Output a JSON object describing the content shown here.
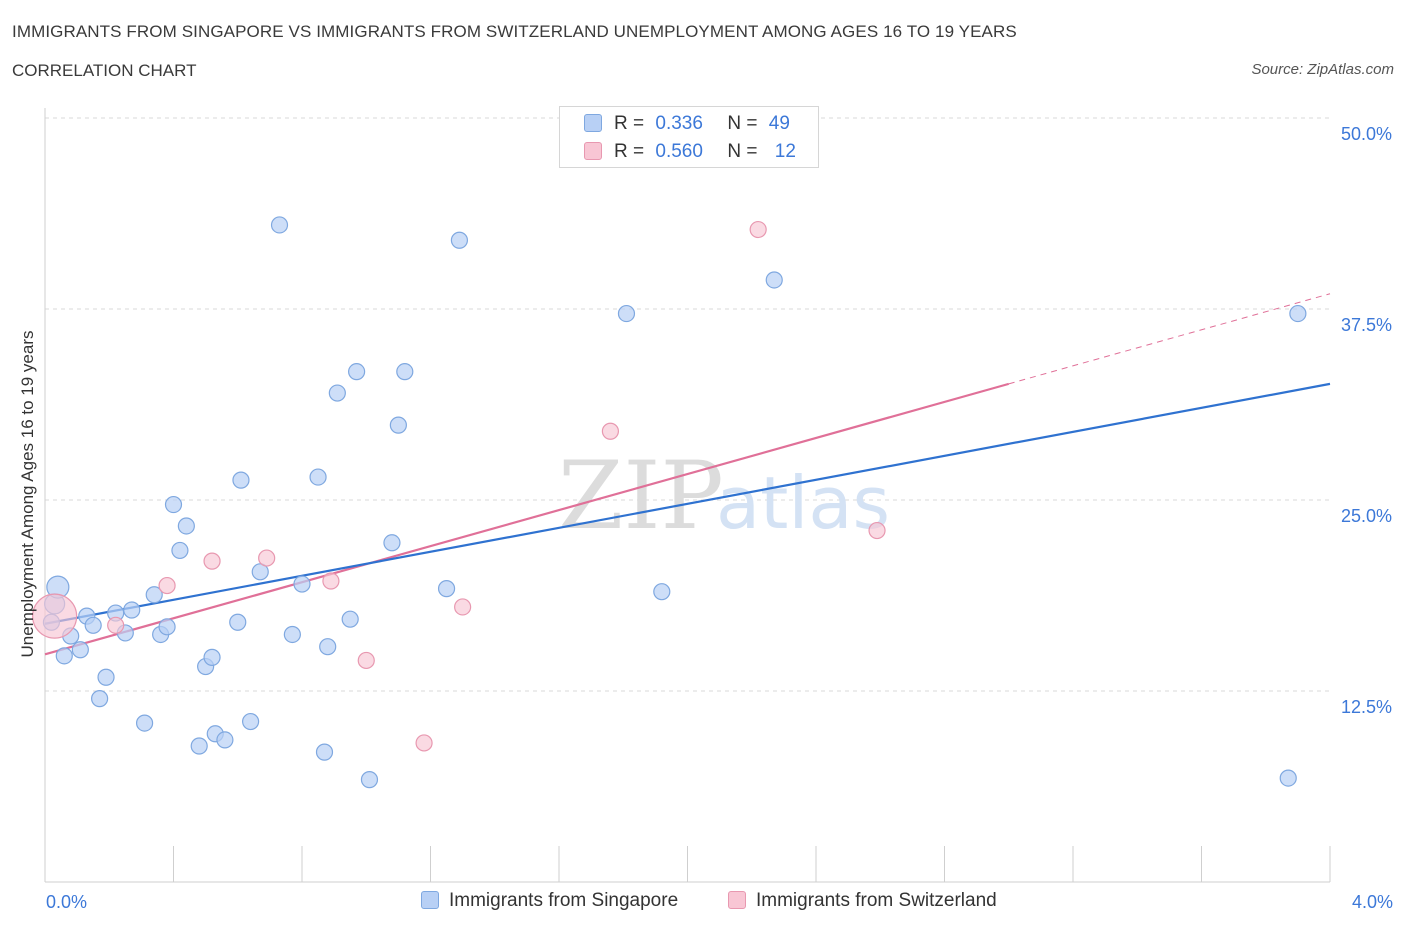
{
  "title": "IMMIGRANTS FROM SINGAPORE VS IMMIGRANTS FROM SWITZERLAND UNEMPLOYMENT AMONG AGES 16 TO 19 YEARS",
  "subtitle": "CORRELATION CHART",
  "source": "Source: ZipAtlas.com",
  "watermark": {
    "zip": "ZIP",
    "atlas": "atlas"
  },
  "legend": {
    "rows": [
      {
        "r_label": "R =",
        "r_value": "0.336",
        "n_label": "N =",
        "n_value": "49"
      },
      {
        "r_label": "R =",
        "r_value": "0.560",
        "n_label": "N =",
        "n_value": "12"
      }
    ]
  },
  "colors": {
    "singapore_fill": "#b8d0f5",
    "singapore_stroke": "#7fa8e0",
    "singapore_line": "#2f72d0",
    "switzerland_fill": "#f8c6d4",
    "switzerland_stroke": "#e898b0",
    "switzerland_line": "#e07098",
    "axis_label": "#3c78d8",
    "grid": "#d9d9d9"
  },
  "chart_data": {
    "type": "scatter",
    "xlabel": "",
    "ylabel": "Unemployment Among Ages 16 to 19 years",
    "xlim": [
      0,
      4.0
    ],
    "ylim": [
      0,
      50
    ],
    "x_tick_labels": [
      "0.0%",
      "4.0%"
    ],
    "y_ticks": [
      12.5,
      25.0,
      37.5,
      50.0
    ],
    "y_tick_labels": [
      "12.5%",
      "25.0%",
      "37.5%",
      "50.0%"
    ],
    "grid": true,
    "legend_position": "top-center",
    "series": [
      {
        "name": "Immigrants from Singapore",
        "points": [
          [
            0.03,
            18.2
          ],
          [
            0.04,
            19.3
          ],
          [
            0.06,
            14.8
          ],
          [
            0.08,
            16.1
          ],
          [
            0.11,
            15.2
          ],
          [
            0.13,
            17.4
          ],
          [
            0.15,
            16.8
          ],
          [
            0.17,
            12.0
          ],
          [
            0.19,
            13.4
          ],
          [
            0.22,
            17.6
          ],
          [
            0.25,
            16.3
          ],
          [
            0.27,
            17.8
          ],
          [
            0.31,
            10.4
          ],
          [
            0.34,
            18.8
          ],
          [
            0.36,
            16.2
          ],
          [
            0.38,
            16.7
          ],
          [
            0.4,
            24.7
          ],
          [
            0.42,
            21.7
          ],
          [
            0.44,
            23.3
          ],
          [
            0.48,
            8.9
          ],
          [
            0.5,
            14.1
          ],
          [
            0.52,
            14.7
          ],
          [
            0.53,
            9.7
          ],
          [
            0.56,
            9.3
          ],
          [
            0.6,
            17.0
          ],
          [
            0.61,
            26.3
          ],
          [
            0.64,
            10.5
          ],
          [
            0.67,
            20.3
          ],
          [
            0.73,
            43.0
          ],
          [
            0.77,
            16.2
          ],
          [
            0.8,
            19.5
          ],
          [
            0.85,
            26.5
          ],
          [
            0.87,
            8.5
          ],
          [
            0.88,
            15.4
          ],
          [
            0.91,
            32.0
          ],
          [
            0.95,
            17.2
          ],
          [
            0.97,
            33.4
          ],
          [
            1.01,
            6.7
          ],
          [
            1.08,
            22.2
          ],
          [
            1.1,
            29.9
          ],
          [
            1.12,
            33.4
          ],
          [
            1.25,
            19.2
          ],
          [
            1.29,
            42.0
          ],
          [
            1.81,
            37.2
          ],
          [
            1.92,
            19.0
          ],
          [
            2.27,
            39.4
          ],
          [
            3.9,
            37.2
          ],
          [
            3.87,
            6.8
          ],
          [
            0.02,
            17.0
          ]
        ],
        "trend": {
          "x": [
            0.0,
            4.0
          ],
          "y": [
            16.9,
            32.6
          ]
        }
      },
      {
        "name": "Immigrants from Switzerland",
        "points": [
          [
            0.03,
            17.4
          ],
          [
            0.22,
            16.8
          ],
          [
            0.38,
            19.4
          ],
          [
            0.52,
            21.0
          ],
          [
            0.69,
            21.2
          ],
          [
            0.89,
            19.7
          ],
          [
            1.0,
            14.5
          ],
          [
            1.18,
            9.1
          ],
          [
            1.3,
            18.0
          ],
          [
            1.76,
            29.5
          ],
          [
            2.22,
            42.7
          ],
          [
            2.59,
            23.0
          ]
        ],
        "trend": {
          "x": [
            0.0,
            3.0
          ],
          "y": [
            14.9,
            32.6
          ]
        },
        "trend_extension": {
          "x": [
            3.0,
            4.0
          ],
          "y": [
            32.6,
            38.5
          ]
        }
      }
    ]
  }
}
